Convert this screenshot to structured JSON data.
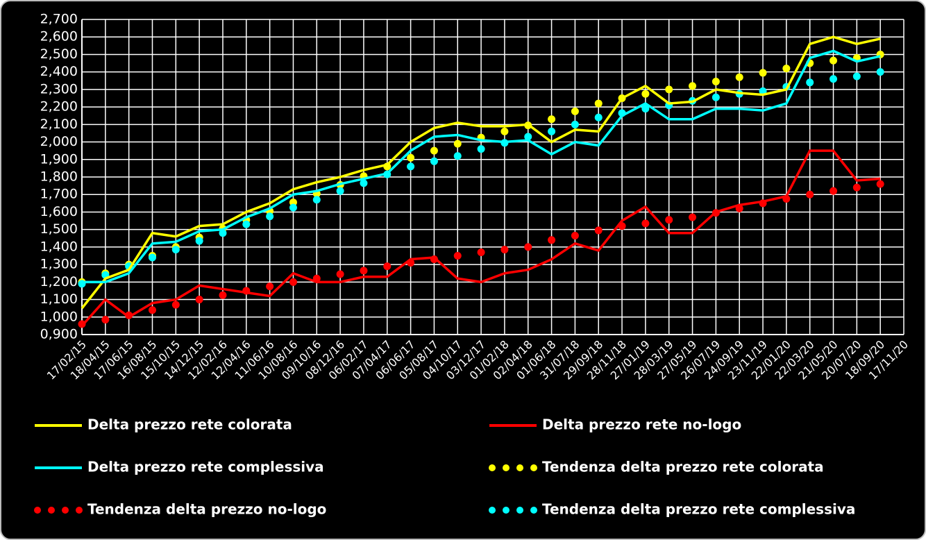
{
  "chart_data": {
    "type": "line",
    "x": [
      "17/02/15",
      "18/04/15",
      "17/06/15",
      "16/08/15",
      "15/10/15",
      "14/12/15",
      "12/02/16",
      "12/04/16",
      "11/06/16",
      "10/08/16",
      "09/10/16",
      "08/12/16",
      "06/02/17",
      "07/04/17",
      "06/06/17",
      "05/08/17",
      "04/10/17",
      "03/12/17",
      "01/02/18",
      "02/04/18",
      "01/06/18",
      "31/07/18",
      "29/09/18",
      "28/11/18",
      "27/01/19",
      "28/03/19",
      "27/05/19",
      "26/07/19",
      "24/09/19",
      "23/11/19",
      "22/01/20",
      "22/03/20",
      "21/05/20",
      "20/07/20",
      "18/09/20",
      "17/11/20"
    ],
    "series": [
      {
        "name": "Delta prezzo rete colorata",
        "color": "#ffff00",
        "style": "solid",
        "values": [
          1050,
          1220,
          1270,
          1480,
          1460,
          1520,
          1530,
          1600,
          1650,
          1730,
          1770,
          1800,
          1840,
          1870,
          2000,
          2080,
          2110,
          2090,
          2090,
          2100,
          2000,
          2070,
          2060,
          2250,
          2320,
          2220,
          2230,
          2300,
          2280,
          2270,
          2300,
          2560,
          2600,
          2560,
          2590,
          null
        ]
      },
      {
        "name": "Delta prezzo rete no-logo",
        "color": "#ff0000",
        "style": "solid",
        "values": [
          950,
          1100,
          1000,
          1080,
          1100,
          1180,
          1160,
          1140,
          1120,
          1250,
          1200,
          1200,
          1230,
          1230,
          1330,
          1340,
          1220,
          1200,
          1250,
          1270,
          1330,
          1420,
          1380,
          1550,
          1630,
          1480,
          1480,
          1600,
          1640,
          1660,
          1690,
          1950,
          1950,
          1780,
          1790,
          null
        ]
      },
      {
        "name": "Delta prezzo rete complessiva",
        "color": "#00ffff",
        "style": "solid",
        "values": [
          1200,
          1200,
          1250,
          1420,
          1430,
          1490,
          1500,
          1570,
          1620,
          1700,
          1720,
          1760,
          1790,
          1820,
          1950,
          2030,
          2040,
          2010,
          2000,
          2010,
          1930,
          2000,
          1980,
          2150,
          2220,
          2130,
          2130,
          2190,
          2190,
          2180,
          2220,
          2480,
          2520,
          2460,
          2490,
          null
        ]
      },
      {
        "name": "Tendenza delta prezzo rete colorata",
        "color": "#ffff00",
        "style": "dotted",
        "values": [
          1200,
          1250,
          1300,
          1350,
          1400,
          1455,
          1505,
          1555,
          1605,
          1655,
          1705,
          1755,
          1805,
          1860,
          1910,
          1950,
          1990,
          2025,
          2060,
          2095,
          2130,
          2175,
          2220,
          2250,
          2275,
          2300,
          2320,
          2345,
          2370,
          2395,
          2420,
          2450,
          2465,
          2480,
          2500,
          null
        ]
      },
      {
        "name": "Tendenza delta prezzo no-logo",
        "color": "#ff0000",
        "style": "dotted",
        "values": [
          960,
          985,
          1010,
          1040,
          1070,
          1100,
          1125,
          1150,
          1175,
          1200,
          1220,
          1245,
          1265,
          1290,
          1310,
          1330,
          1350,
          1370,
          1385,
          1400,
          1440,
          1465,
          1495,
          1520,
          1535,
          1555,
          1570,
          1595,
          1620,
          1650,
          1675,
          1700,
          1720,
          1740,
          1760,
          null
        ]
      },
      {
        "name": "Tendenza delta prezzo rete complessiva",
        "color": "#00ffff",
        "style": "dotted",
        "values": [
          1190,
          1240,
          1290,
          1340,
          1385,
          1435,
          1480,
          1530,
          1575,
          1625,
          1670,
          1720,
          1765,
          1815,
          1860,
          1890,
          1920,
          1960,
          1995,
          2030,
          2060,
          2100,
          2140,
          2165,
          2190,
          2210,
          2235,
          2255,
          2275,
          2290,
          2315,
          2340,
          2360,
          2375,
          2400,
          null
        ]
      }
    ],
    "ylim": [
      900,
      2700
    ],
    "yticks": [
      {
        "value": 900,
        "label": "0,900"
      },
      {
        "value": 1000,
        "label": "1,000"
      },
      {
        "value": 1100,
        "label": "1,100"
      },
      {
        "value": 1200,
        "label": "1,200"
      },
      {
        "value": 1300,
        "label": "1,300"
      },
      {
        "value": 1400,
        "label": "1,400"
      },
      {
        "value": 1500,
        "label": "1,500"
      },
      {
        "value": 1600,
        "label": "1,600"
      },
      {
        "value": 1700,
        "label": "1,700"
      },
      {
        "value": 1800,
        "label": "1,800"
      },
      {
        "value": 1900,
        "label": "1,900"
      },
      {
        "value": 2000,
        "label": "2,000"
      },
      {
        "value": 2100,
        "label": "2,100"
      },
      {
        "value": 2200,
        "label": "2,200"
      },
      {
        "value": 2300,
        "label": "2,300"
      },
      {
        "value": 2400,
        "label": "2,400"
      },
      {
        "value": 2500,
        "label": "2,500"
      },
      {
        "value": 2600,
        "label": "2,600"
      },
      {
        "value": 2700,
        "label": "2,700"
      }
    ],
    "grid": true,
    "legend": "bottom"
  }
}
